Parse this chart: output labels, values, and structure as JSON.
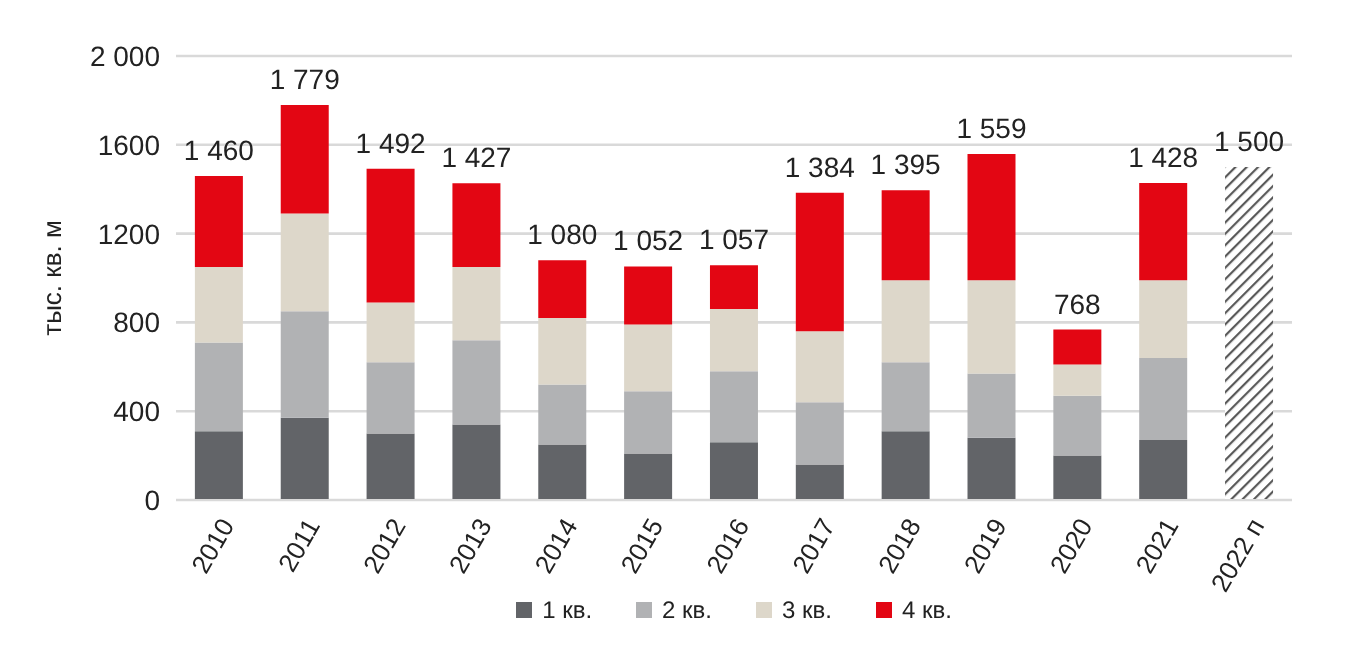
{
  "chart_data": {
    "type": "bar",
    "stacked": true,
    "ylabel": "тыс. кв. м",
    "categories": [
      "2010",
      "2011",
      "2012",
      "2013",
      "2014",
      "2015",
      "2016",
      "2017",
      "2018",
      "2019",
      "2020",
      "2021",
      "2022 п"
    ],
    "series": [
      {
        "name": "1 кв.",
        "color": "#626468",
        "values": [
          310,
          370,
          300,
          340,
          250,
          210,
          260,
          160,
          310,
          280,
          200,
          270,
          null
        ]
      },
      {
        "name": "2 кв.",
        "color": "#b1b2b4",
        "values": [
          400,
          480,
          320,
          380,
          270,
          280,
          320,
          280,
          310,
          290,
          270,
          370,
          null
        ]
      },
      {
        "name": "3 кв.",
        "color": "#ddd7ca",
        "values": [
          340,
          440,
          270,
          330,
          300,
          300,
          280,
          320,
          370,
          420,
          140,
          350,
          null
        ]
      },
      {
        "name": "4 кв.",
        "color": "#e30613",
        "values": [
          410,
          489,
          602,
          377,
          260,
          262,
          197,
          624,
          405,
          569,
          158,
          438,
          null
        ]
      },
      {
        "color": "#595959",
        "values": [
          null,
          null,
          null,
          null,
          null,
          null,
          null,
          null,
          null,
          null,
          null,
          null,
          1500
        ]
      }
    ],
    "totals": [
      "1 460",
      "1 779",
      "1 492",
      "1 427",
      "1 080",
      "1 052",
      "1 057",
      "1 384",
      "1 395",
      "1 559",
      "768",
      "1 428",
      "1 500"
    ],
    "ylim": [
      0,
      2000
    ],
    "yticks": [
      0,
      400,
      800,
      1200,
      1600,
      {
        "value": 2000,
        "label": "2 000"
      }
    ],
    "grid": "y",
    "legend": "bottom"
  }
}
